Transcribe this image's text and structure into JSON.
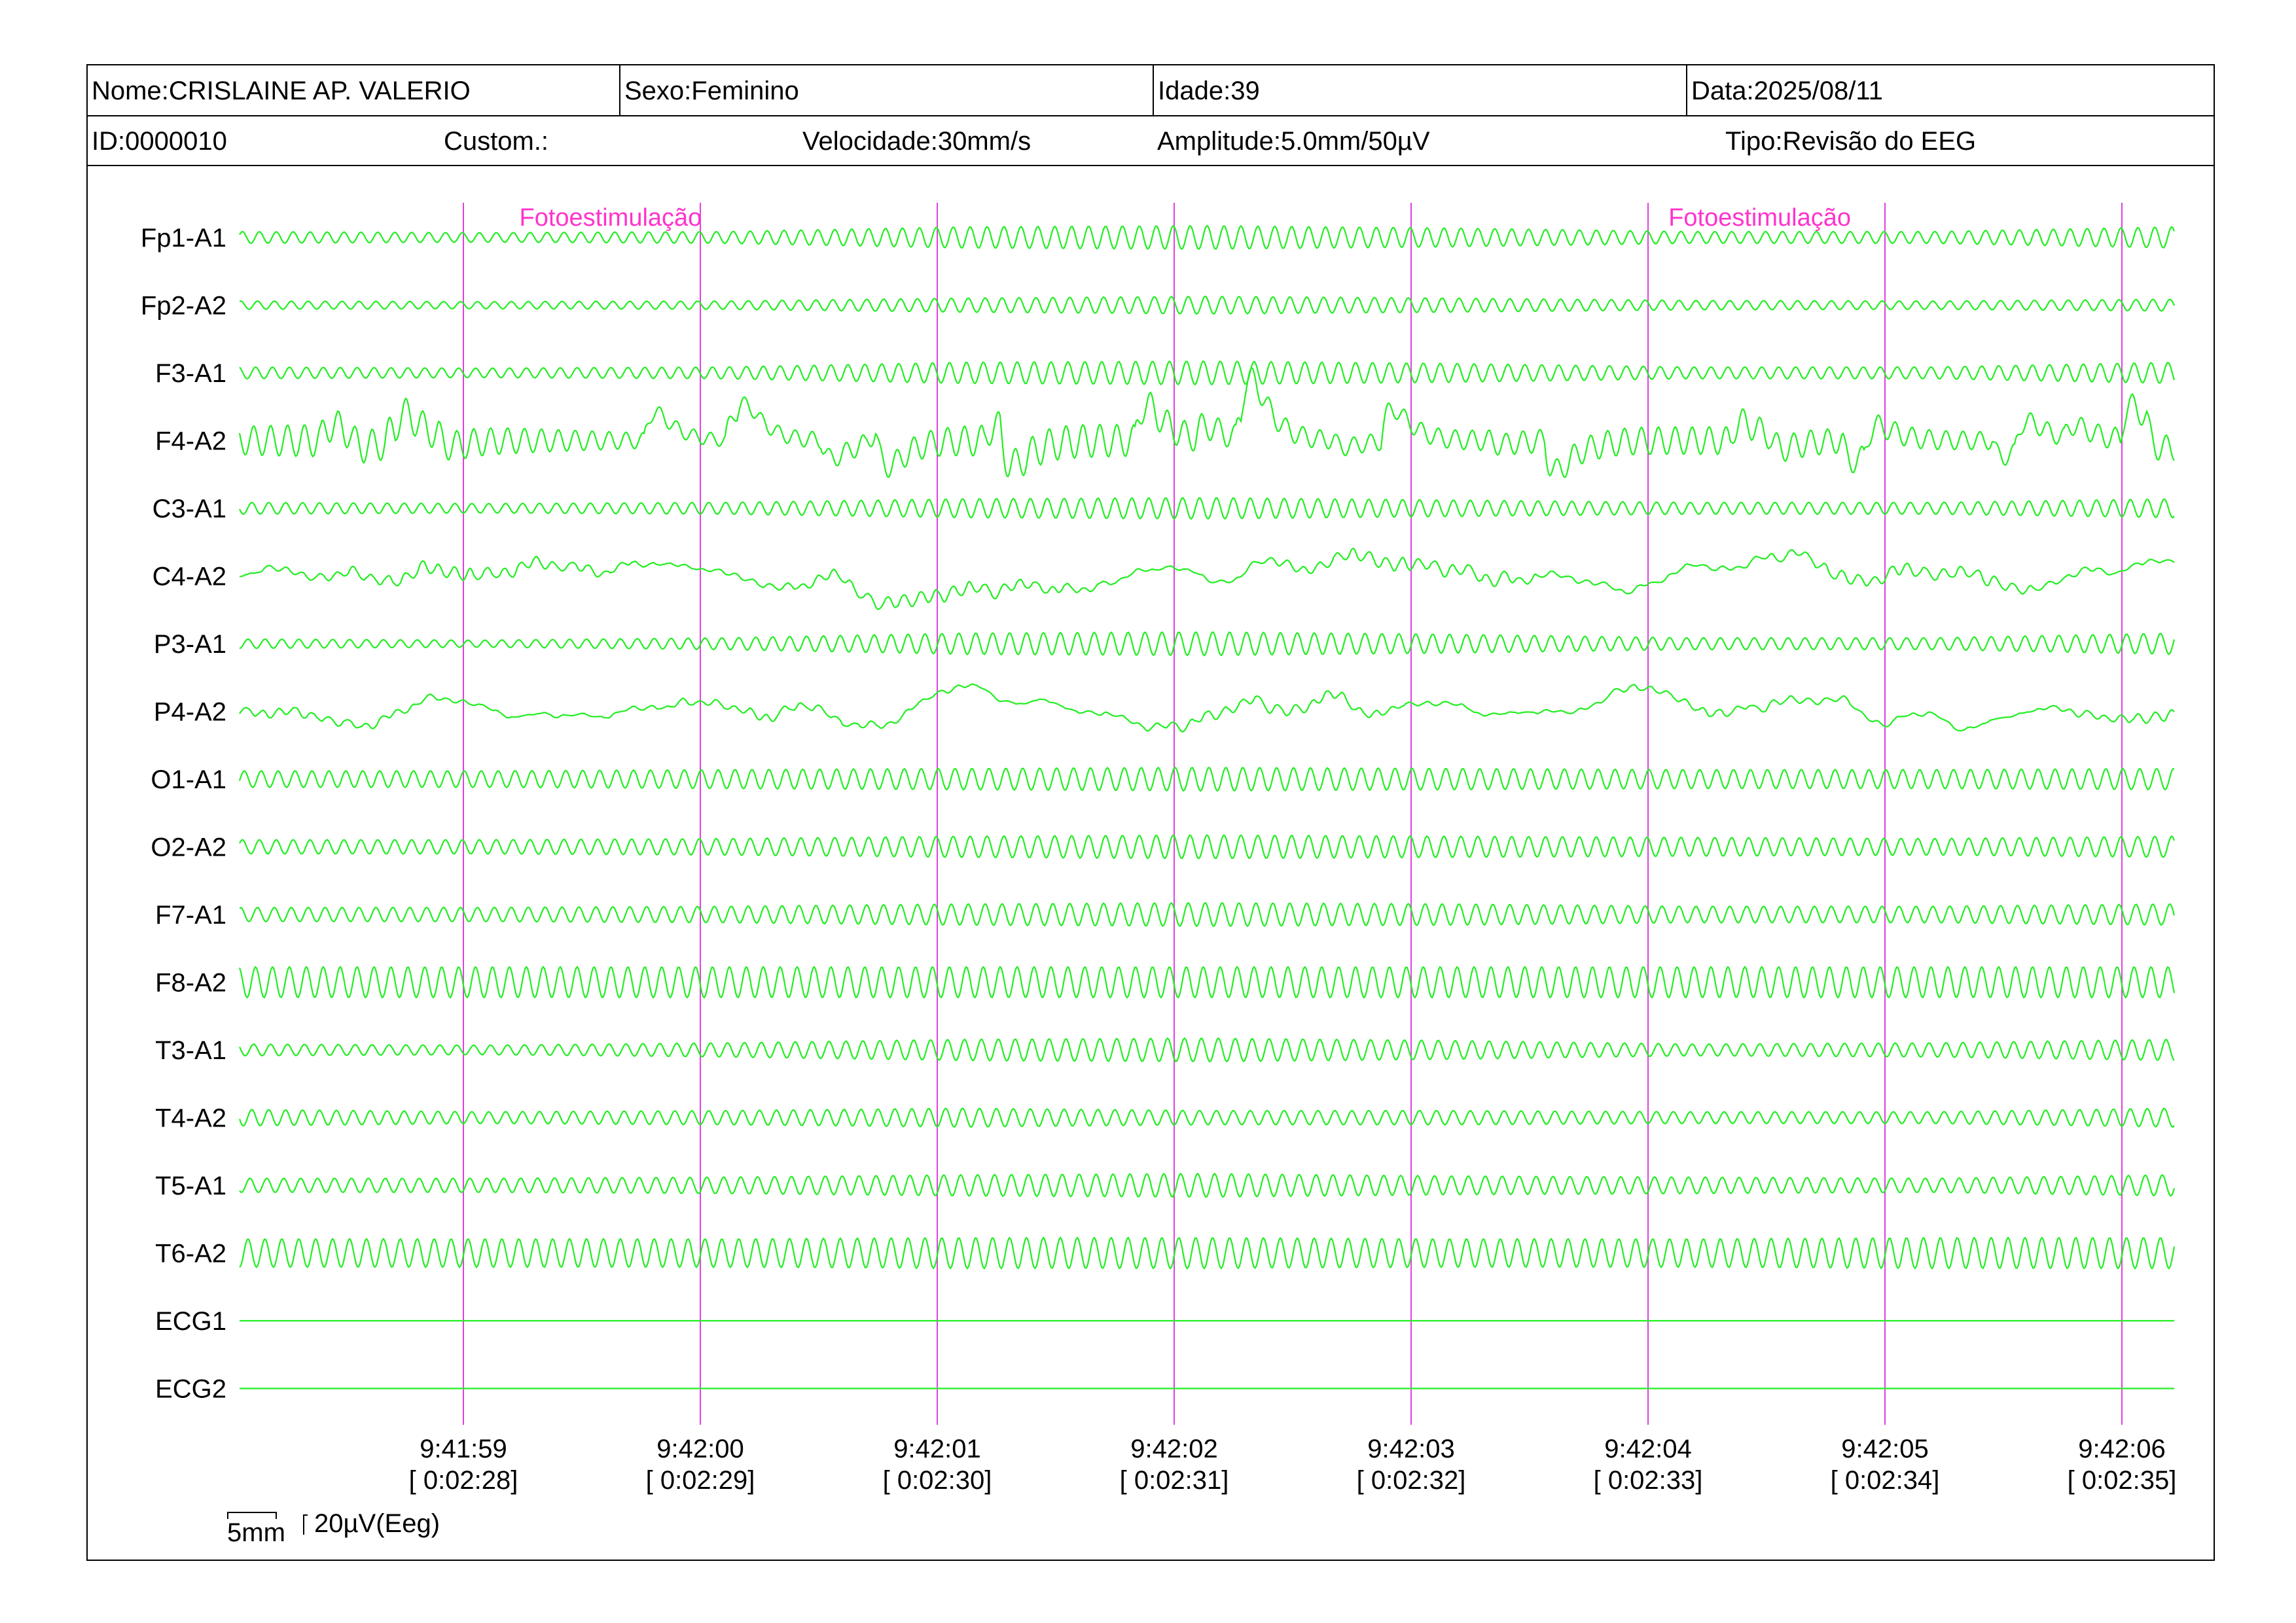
{
  "header": {
    "nome": "Nome:CRISLAINE AP. VALERIO",
    "sexo": "Sexo:Feminino",
    "idade": "Idade:39",
    "data": "Data:2025/08/11",
    "id": "ID:0000010",
    "custom": "Custom.:",
    "velocidade": "Velocidade:30mm/s",
    "amplitude": "Amplitude:5.0mm/50µV",
    "tipo": "Tipo:Revisão do EEG"
  },
  "colors": {
    "trace": "#22ee22",
    "marker": "#e040e0",
    "event_text": "#ff33cc"
  },
  "calibration": {
    "time_label": "5mm",
    "amp_label": "20µV(Eeg)"
  },
  "chart_data": {
    "type": "line",
    "channels": [
      {
        "name": "Fp1-A1",
        "activity": [
          0.5,
          0.4,
          0.5,
          0.9,
          1.0,
          0.8,
          0.5,
          0.5,
          0.9
        ]
      },
      {
        "name": "Fp2-A2",
        "activity": [
          0.35,
          0.3,
          0.35,
          0.6,
          0.75,
          0.6,
          0.4,
          0.35,
          0.5
        ]
      },
      {
        "name": "F3-A1",
        "activity": [
          0.5,
          0.4,
          0.5,
          0.9,
          1.0,
          0.8,
          0.5,
          0.5,
          0.9
        ]
      },
      {
        "name": "F4-A2",
        "activity": [
          1.5,
          1.2,
          1.0,
          1.3,
          1.4,
          1.3,
          1.1,
          1.3,
          1.5
        ],
        "artifact": true
      },
      {
        "name": "C3-A1",
        "activity": [
          0.5,
          0.4,
          0.5,
          0.8,
          0.9,
          0.7,
          0.5,
          0.5,
          0.8
        ]
      },
      {
        "name": "C4-A2",
        "activity": [
          0.5,
          0.5,
          0.5,
          0.5,
          0.5,
          0.5,
          0.5,
          0.5,
          0.6
        ],
        "irregular": true
      },
      {
        "name": "P3-A1",
        "activity": [
          0.4,
          0.3,
          0.5,
          0.9,
          1.0,
          0.8,
          0.5,
          0.5,
          0.9
        ]
      },
      {
        "name": "P4-A2",
        "activity": [
          0.3,
          0.3,
          0.3,
          0.3,
          0.4,
          0.4,
          0.3,
          0.3,
          0.5
        ],
        "irregular": true
      },
      {
        "name": "O1-A1",
        "activity": [
          0.7,
          0.7,
          0.8,
          0.9,
          1.0,
          0.9,
          0.8,
          0.8,
          0.9
        ]
      },
      {
        "name": "O2-A2",
        "activity": [
          0.6,
          0.6,
          0.7,
          0.9,
          1.0,
          0.9,
          0.8,
          0.7,
          0.9
        ]
      },
      {
        "name": "F7-A1",
        "activity": [
          0.6,
          0.6,
          0.7,
          0.9,
          1.0,
          0.9,
          0.7,
          0.7,
          0.9
        ]
      },
      {
        "name": "F8-A2",
        "activity": [
          1.3,
          1.3,
          1.3,
          1.3,
          1.3,
          1.3,
          1.3,
          1.3,
          1.3
        ]
      },
      {
        "name": "T3-A1",
        "activity": [
          0.5,
          0.4,
          0.6,
          0.9,
          1.0,
          0.8,
          0.5,
          0.6,
          0.9
        ]
      },
      {
        "name": "T4-A2",
        "activity": [
          0.7,
          0.5,
          0.6,
          0.8,
          0.6,
          0.6,
          0.5,
          0.5,
          0.8
        ]
      },
      {
        "name": "T5-A1",
        "activity": [
          0.6,
          0.6,
          0.7,
          0.9,
          1.0,
          0.8,
          0.7,
          0.6,
          0.9
        ]
      },
      {
        "name": "T6-A2",
        "activity": [
          1.2,
          1.2,
          1.2,
          1.3,
          1.3,
          1.2,
          1.2,
          1.3,
          1.3
        ]
      },
      {
        "name": "ECG1",
        "activity": [
          0,
          0,
          0,
          0,
          0,
          0,
          0,
          0,
          0
        ],
        "flat": true
      },
      {
        "name": "ECG2",
        "activity": [
          0,
          0,
          0,
          0,
          0,
          0,
          0,
          0,
          0
        ],
        "flat": true
      }
    ],
    "seconds": [
      {
        "clock": "9:41:59",
        "elapsed": "[ 0:02:28]"
      },
      {
        "clock": "9:42:00",
        "elapsed": "[ 0:02:29]"
      },
      {
        "clock": "9:42:01",
        "elapsed": "[ 0:02:30]"
      },
      {
        "clock": "9:42:02",
        "elapsed": "[ 0:02:31]"
      },
      {
        "clock": "9:42:03",
        "elapsed": "[ 0:02:32]"
      },
      {
        "clock": "9:42:04",
        "elapsed": "[ 0:02:33]"
      },
      {
        "clock": "9:42:05",
        "elapsed": "[ 0:02:34]"
      },
      {
        "clock": "9:42:06",
        "elapsed": "[ 0:02:35]"
      }
    ],
    "events": [
      {
        "label": "Fotoestimulação",
        "second": 0.25
      },
      {
        "label": "Fotoestimulação",
        "second": 5.1
      }
    ],
    "frequency_hz": 14
  }
}
